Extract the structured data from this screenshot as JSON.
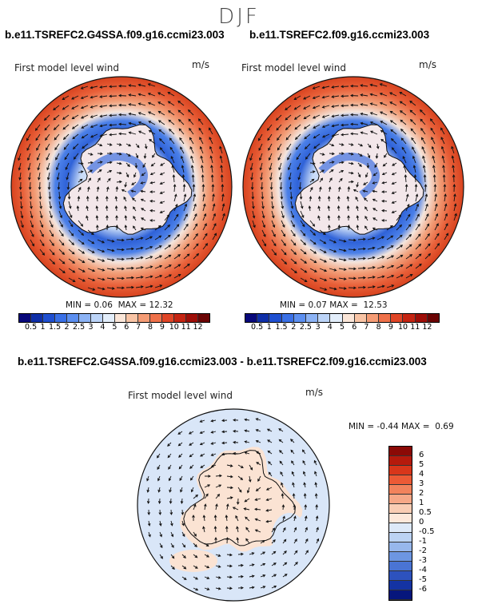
{
  "season": "DJF",
  "panels": [
    {
      "case": "b.e11.TSREFC2.G4SSA.f09.g16.ccmi23.003",
      "title": "First model level wind",
      "units": "m/s",
      "min_label": "MIN =",
      "min_value": "0.06",
      "max_label": "MAX =",
      "max_value": "12.32"
    },
    {
      "case": "b.e11.TSREFC2.f09.g16.ccmi23.003",
      "title": "First model level wind",
      "units": "m/s",
      "min_label": "MIN =",
      "min_value": "0.07",
      "max_label": "MAX =",
      "max_value": "12.53"
    }
  ],
  "abs_colorbar": {
    "labels": [
      "0.5",
      "1",
      "1.5",
      "2",
      "2.5",
      "3",
      "4",
      "5",
      "6",
      "7",
      "8",
      "9",
      "10",
      "11",
      "12"
    ],
    "colors": [
      "#08087a",
      "#0f2fa8",
      "#1f4fd0",
      "#3a70e6",
      "#5c8ff0",
      "#8cb3f5",
      "#bcd4f8",
      "#e3eefb",
      "#fbe6d8",
      "#f9c4a5",
      "#f59c75",
      "#ef714a",
      "#e04526",
      "#c52412",
      "#9e0e08",
      "#6b0404"
    ]
  },
  "diff_panel": {
    "case": "b.e11.TSREFC2.G4SSA.f09.g16.ccmi23.003 - b.e11.TSREFC2.f09.g16.ccmi23.003",
    "title": "First model level wind",
    "units": "m/s",
    "min_label": "MIN =",
    "min_value": "-0.44",
    "max_label": "MAX =",
    "max_value": "0.69"
  },
  "diff_colorbar": {
    "labels": [
      "6",
      "5",
      "4",
      "3",
      "2",
      "1",
      "0.5",
      "0",
      "-0.5",
      "-1",
      "-2",
      "-3",
      "-4",
      "-5",
      "-6"
    ],
    "colors": [
      "#8b0a06",
      "#b51a0c",
      "#d8361a",
      "#ec5a35",
      "#f2835c",
      "#f6a887",
      "#f9cdb4",
      "#fde8da",
      "#dde9f8",
      "#bcd3f3",
      "#97b7ec",
      "#6d96e2",
      "#4a74d4",
      "#2d52be",
      "#1433a3",
      "#06167c"
    ]
  }
}
